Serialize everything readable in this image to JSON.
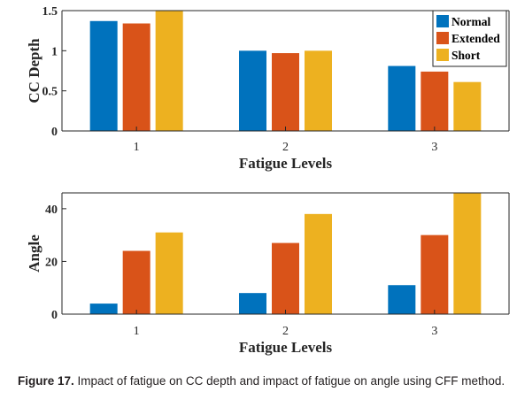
{
  "figure": {
    "caption_label": "Figure 17.",
    "caption_text": "Impact of fatigue on CC depth and impact of fatigue on angle using CFF method."
  },
  "chart_data": [
    {
      "type": "bar",
      "ylabel": "CC Depth",
      "xlabel": "Fatigue Levels",
      "categories": [
        "1",
        "2",
        "3"
      ],
      "ylim": [
        0,
        1.5
      ],
      "yticks": [
        "0",
        "0.5",
        "1",
        "1.5"
      ],
      "legend_position": "top-right",
      "grid": false,
      "series": [
        {
          "name": "Normal",
          "color": "#0072BD",
          "values": [
            1.37,
            1.0,
            0.81
          ]
        },
        {
          "name": "Extended",
          "color": "#D95319",
          "values": [
            1.34,
            0.97,
            0.74
          ]
        },
        {
          "name": "Short",
          "color": "#EDB120",
          "values": [
            1.52,
            1.0,
            0.61
          ]
        }
      ]
    },
    {
      "type": "bar",
      "ylabel": "Angle",
      "xlabel": "Fatigue Levels",
      "categories": [
        "1",
        "2",
        "3"
      ],
      "ylim": [
        0,
        46
      ],
      "yticks": [
        "0",
        "20",
        "40"
      ],
      "grid": false,
      "series": [
        {
          "color": "#0072BD",
          "values": [
            4,
            8,
            11
          ]
        },
        {
          "color": "#D95319",
          "values": [
            24,
            27,
            30
          ]
        },
        {
          "color": "#EDB120",
          "values": [
            31,
            38,
            46
          ]
        }
      ]
    }
  ]
}
